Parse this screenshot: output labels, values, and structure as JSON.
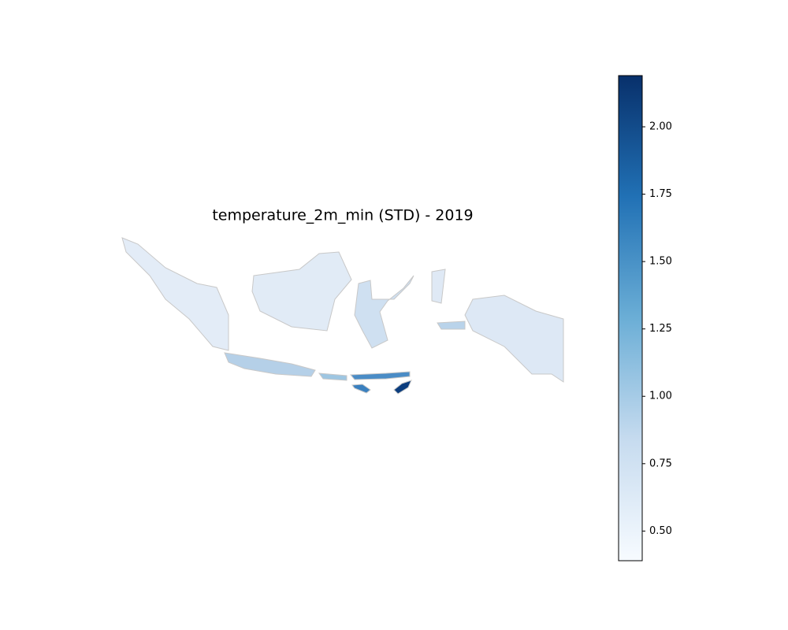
{
  "chart_data": {
    "type": "choropleth",
    "title": "temperature_2m_min (STD) - 2019",
    "colorbar": {
      "lim": [
        0.39,
        2.19
      ],
      "ticks": [
        {
          "value": 0.5,
          "label": "0.50"
        },
        {
          "value": 0.75,
          "label": "0.75"
        },
        {
          "value": 1.0,
          "label": "1.00"
        },
        {
          "value": 1.25,
          "label": "1.25"
        },
        {
          "value": 1.5,
          "label": "1.50"
        },
        {
          "value": 1.75,
          "label": "1.75"
        },
        {
          "value": 2.0,
          "label": "2.00"
        }
      ],
      "colors": [
        "#f7fbff",
        "#c6dbef",
        "#6baed6",
        "#2171b5",
        "#08306b"
      ]
    }
  }
}
